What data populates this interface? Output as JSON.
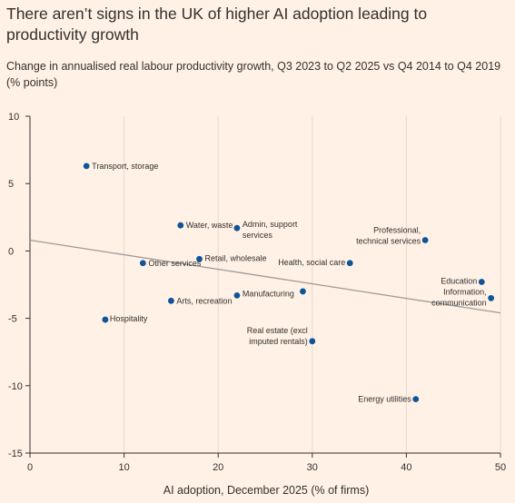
{
  "header": {
    "title": "There aren’t signs in the UK of higher AI adoption leading to productivity growth",
    "subtitle": "Change in annualised real labour productivity growth, Q3 2023 to Q2 2025 vs Q4 2014 to Q4 2019 (% points)"
  },
  "colors": {
    "background": "#FFF1E5",
    "point": "#0F5499",
    "trendline": "#9E9A97",
    "axis": "#33302E"
  },
  "chart_data": {
    "type": "scatter",
    "title": "There aren’t signs in the UK of higher AI adoption leading to productivity growth",
    "subtitle": "Change in annualised real labour productivity growth, Q3 2023 to Q2 2025 vs Q4 2014 to Q4 2019 (% points)",
    "xlabel": "AI adoption, December 2025 (% of firms)",
    "ylabel": "",
    "xlim": [
      0,
      50
    ],
    "ylim": [
      -15,
      10
    ],
    "x_ticks": [
      "0",
      "10",
      "20",
      "30",
      "40",
      "50"
    ],
    "y_ticks": [
      "10",
      "5",
      "0",
      "-5",
      "-10",
      "-15"
    ],
    "grid": "vertical",
    "points": [
      {
        "label": "Transport, storage",
        "x": 6,
        "y": 6.3
      },
      {
        "label": "Water, waste",
        "x": 16,
        "y": 1.9
      },
      {
        "label": "Admin, support services",
        "x": 22,
        "y": 1.7
      },
      {
        "label": "Professional, technical services",
        "x": 42,
        "y": 0.8
      },
      {
        "label": "Retail, wholesale",
        "x": 18,
        "y": -0.6
      },
      {
        "label": "Other services",
        "x": 12,
        "y": -0.9
      },
      {
        "label": "Health, social care",
        "x": 34,
        "y": -0.9
      },
      {
        "label": "Education",
        "x": 48,
        "y": -2.3
      },
      {
        "label": "Information, communication",
        "x": 49,
        "y": -3.5
      },
      {
        "label": "",
        "x": 29,
        "y": -3.0
      },
      {
        "label": "Manufacturing",
        "x": 22,
        "y": -3.3
      },
      {
        "label": "Arts, recreation",
        "x": 15,
        "y": -3.7
      },
      {
        "label": "Hospitality",
        "x": 8,
        "y": -5.1
      },
      {
        "label": "Real estate (excl imputed rentals)",
        "x": 30,
        "y": -6.7
      },
      {
        "label": "Energy utilities",
        "x": 41,
        "y": -11.0
      }
    ],
    "trendline": {
      "x": [
        0,
        50
      ],
      "y": [
        0.8,
        -4.6
      ]
    }
  }
}
